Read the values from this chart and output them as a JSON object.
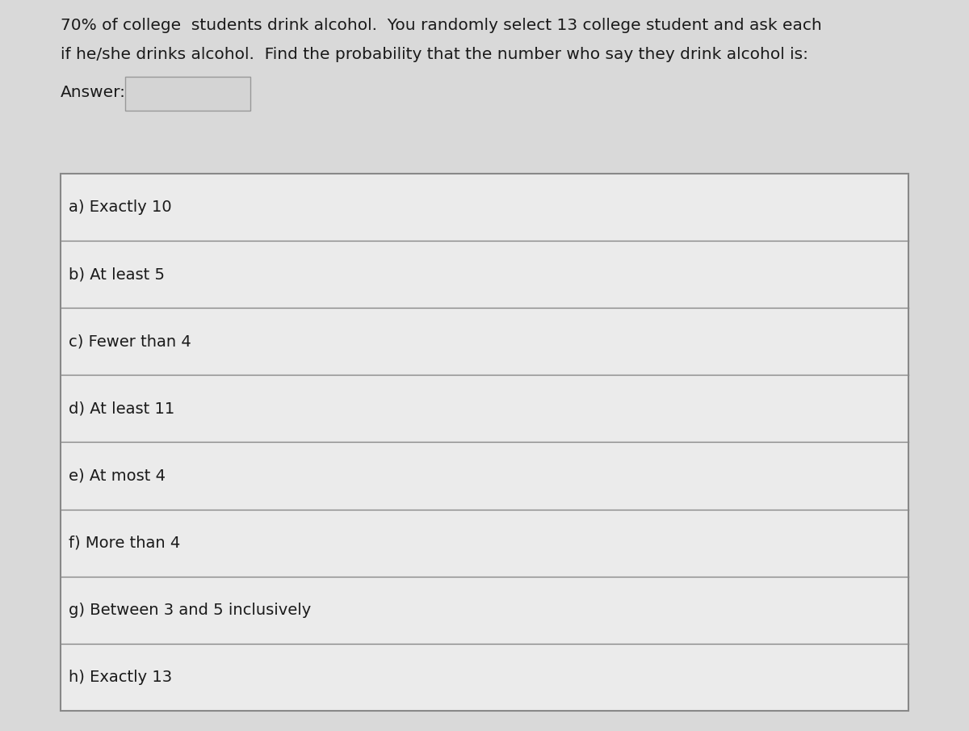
{
  "fig_width": 12.0,
  "fig_height": 9.05,
  "dpi": 100,
  "background_color": "#d9d9d9",
  "panel_color": "#ebebeb",
  "header_text_line1": "70% of college  students drink alcohol.  You randomly select 13 college student and ask each",
  "header_text_line2": "if he/she drinks alcohol.  Find the probability that the number who say they drink alcohol is:",
  "answer_label": "Answer:",
  "table_rows": [
    "a) Exactly 10",
    "b) At least 5",
    "c) Fewer than 4",
    "d) At least 11",
    "e) At most 4",
    "f) More than 4",
    "g) Between 3 and 5 inclusively",
    "h) Exactly 13"
  ],
  "header_fontsize": 14.5,
  "text_fontsize": 14.0,
  "row_text_color": "#1a1a1a",
  "header_text_color": "#1a1a1a",
  "table_border_color": "#888888",
  "answer_box_border_color": "#999999",
  "answer_box_fill": "#d4d4d4"
}
